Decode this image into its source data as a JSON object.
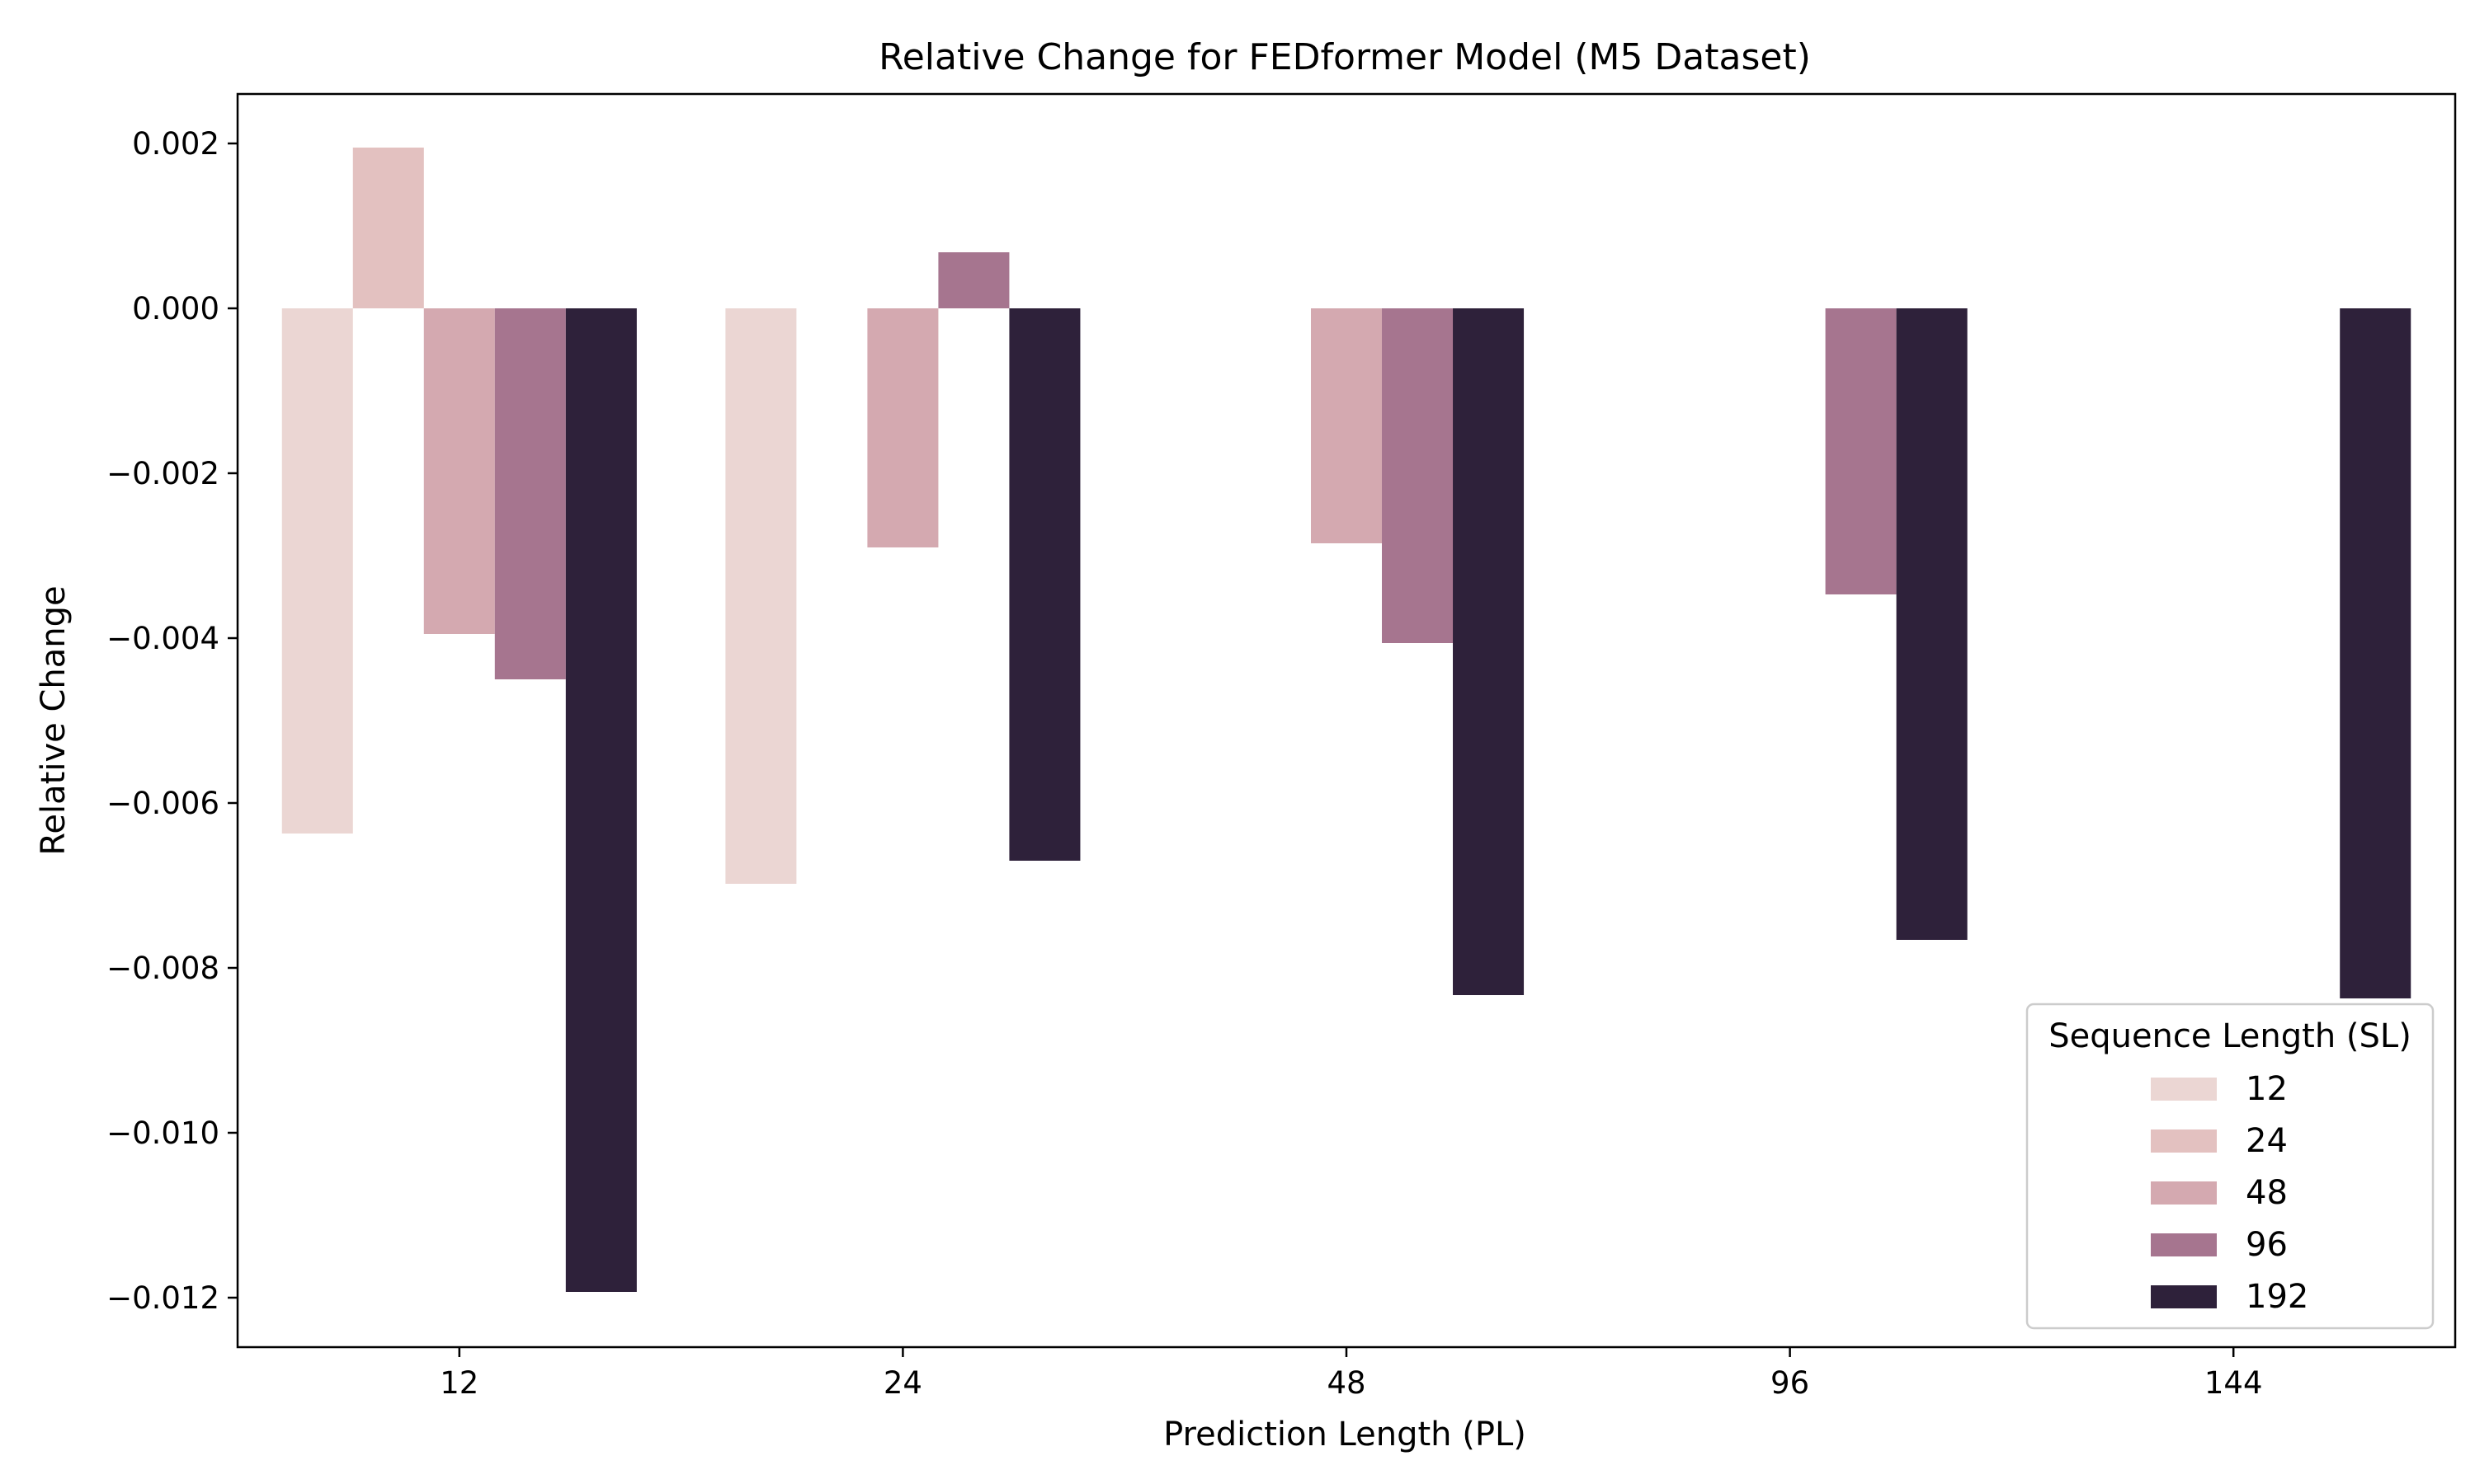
{
  "chart_data": {
    "type": "bar",
    "title": "Relative Change for FEDformer Model (M5 Dataset)",
    "xlabel": "Prediction Length (PL)",
    "ylabel": "Relative Change",
    "categories": [
      "12",
      "24",
      "48",
      "96",
      "144"
    ],
    "ylim": [
      -0.0126,
      0.0026
    ],
    "yticks": [
      0.002,
      0.0,
      -0.002,
      -0.004,
      -0.006,
      -0.008,
      -0.01,
      -0.012
    ],
    "ytick_labels": [
      "0.002",
      "0.000",
      "−0.002",
      "−0.004",
      "−0.006",
      "−0.008",
      "−0.010",
      "−0.012"
    ],
    "grid": false,
    "legend": {
      "title": "Sequence Length (SL)",
      "placement": "lower-right"
    },
    "series": [
      {
        "name": "12",
        "color": "#ebd6d3",
        "values": [
          -0.00637,
          -0.00698,
          null,
          null,
          null
        ]
      },
      {
        "name": "24",
        "color": "#e3c1c0",
        "values": [
          0.00195,
          null,
          null,
          null,
          null
        ]
      },
      {
        "name": "48",
        "color": "#d4a9b0",
        "values": [
          -0.00395,
          -0.0029,
          -0.00285,
          null,
          null
        ]
      },
      {
        "name": "96",
        "color": "#a6758f",
        "values": [
          -0.0045,
          0.00068,
          -0.00406,
          -0.00347,
          null
        ]
      },
      {
        "name": "192",
        "color": "#2e213a",
        "values": [
          -0.01193,
          -0.0067,
          -0.00833,
          -0.00766,
          -0.00837
        ]
      }
    ]
  }
}
